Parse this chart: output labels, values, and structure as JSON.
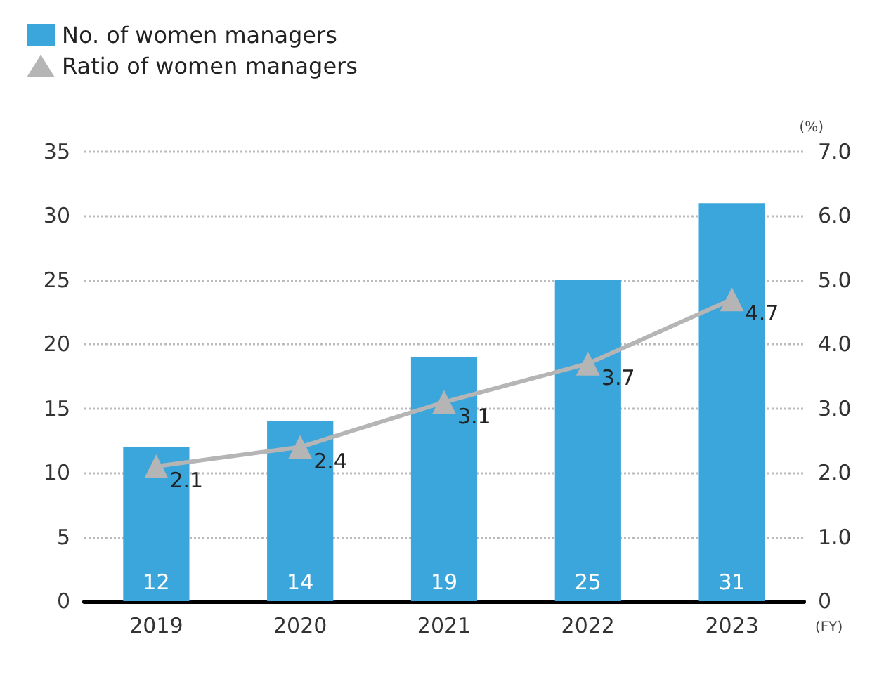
{
  "chart_data": {
    "type": "bar",
    "categories": [
      "2019",
      "2020",
      "2021",
      "2022",
      "2023"
    ],
    "series": [
      {
        "name": "No. of women managers",
        "color": "#3aa6dc",
        "values": [
          12,
          14,
          19,
          25,
          31
        ]
      },
      {
        "name": "Ratio of women managers",
        "type": "line",
        "axis": "y2",
        "color": "#b5b5b5",
        "values": [
          2.1,
          2.4,
          3.1,
          3.7,
          4.7
        ]
      }
    ],
    "xlabel": "(FY)",
    "y2label": "(%)",
    "ylim": [
      0,
      35
    ],
    "yticks": [
      0,
      5,
      10,
      15,
      20,
      25,
      30,
      35
    ],
    "y2lim": [
      0,
      7
    ],
    "y2ticks": [
      0,
      {
        "value": 1,
        "label": "1.0"
      },
      {
        "value": 2,
        "label": "2.0"
      },
      {
        "value": 3,
        "label": "3.0"
      },
      {
        "value": 4,
        "label": "4.0"
      },
      {
        "value": 5,
        "label": "5.0"
      },
      {
        "value": 6,
        "label": "6.0"
      },
      {
        "value": 7,
        "label": "7.0"
      }
    ],
    "grid": "y",
    "legend": "top left",
    "marker": "triangle",
    "line_style": "solid",
    "data_labels": true
  }
}
